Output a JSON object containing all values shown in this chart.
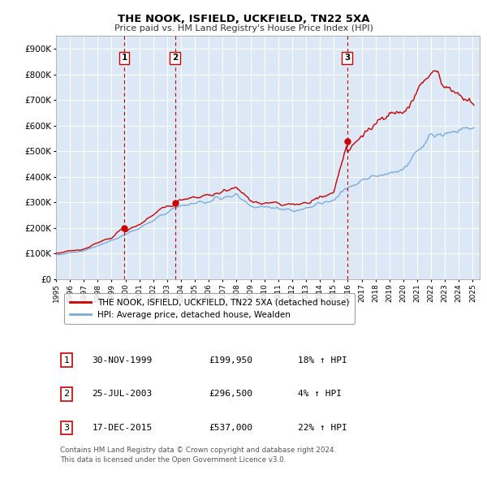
{
  "title": "THE NOOK, ISFIELD, UCKFIELD, TN22 5XA",
  "subtitle": "Price paid vs. HM Land Registry's House Price Index (HPI)",
  "ylim": [
    0,
    950000
  ],
  "yticks": [
    0,
    100000,
    200000,
    300000,
    400000,
    500000,
    600000,
    700000,
    800000,
    900000
  ],
  "ytick_labels": [
    "£0",
    "£100K",
    "£200K",
    "£300K",
    "£400K",
    "£500K",
    "£600K",
    "£700K",
    "£800K",
    "£900K"
  ],
  "plot_bg_color": "#dce8f5",
  "grid_color": "#ffffff",
  "red_line_color": "#cc0000",
  "blue_line_color": "#7aaddb",
  "dashed_vline_color": "#cc0000",
  "sale_dates": [
    1999.917,
    2003.56,
    2015.96
  ],
  "sale_prices": [
    199950,
    296500,
    537000
  ],
  "sale_labels": [
    "1",
    "2",
    "3"
  ],
  "legend_entry1": "THE NOOK, ISFIELD, UCKFIELD, TN22 5XA (detached house)",
  "legend_entry2": "HPI: Average price, detached house, Wealden",
  "table_rows": [
    [
      "1",
      "30-NOV-1999",
      "£199,950",
      "18% ↑ HPI"
    ],
    [
      "2",
      "25-JUL-2003",
      "£296,500",
      "4% ↑ HPI"
    ],
    [
      "3",
      "17-DEC-2015",
      "£537,000",
      "22% ↑ HPI"
    ]
  ],
  "footer": "Contains HM Land Registry data © Crown copyright and database right 2024.\nThis data is licensed under the Open Government Licence v3.0.",
  "xlim": [
    1995.0,
    2025.5
  ],
  "xticks": [
    1995,
    1996,
    1997,
    1998,
    1999,
    2000,
    2001,
    2002,
    2003,
    2004,
    2005,
    2006,
    2007,
    2008,
    2009,
    2010,
    2011,
    2012,
    2013,
    2014,
    2015,
    2016,
    2017,
    2018,
    2019,
    2020,
    2021,
    2022,
    2023,
    2024,
    2025
  ]
}
